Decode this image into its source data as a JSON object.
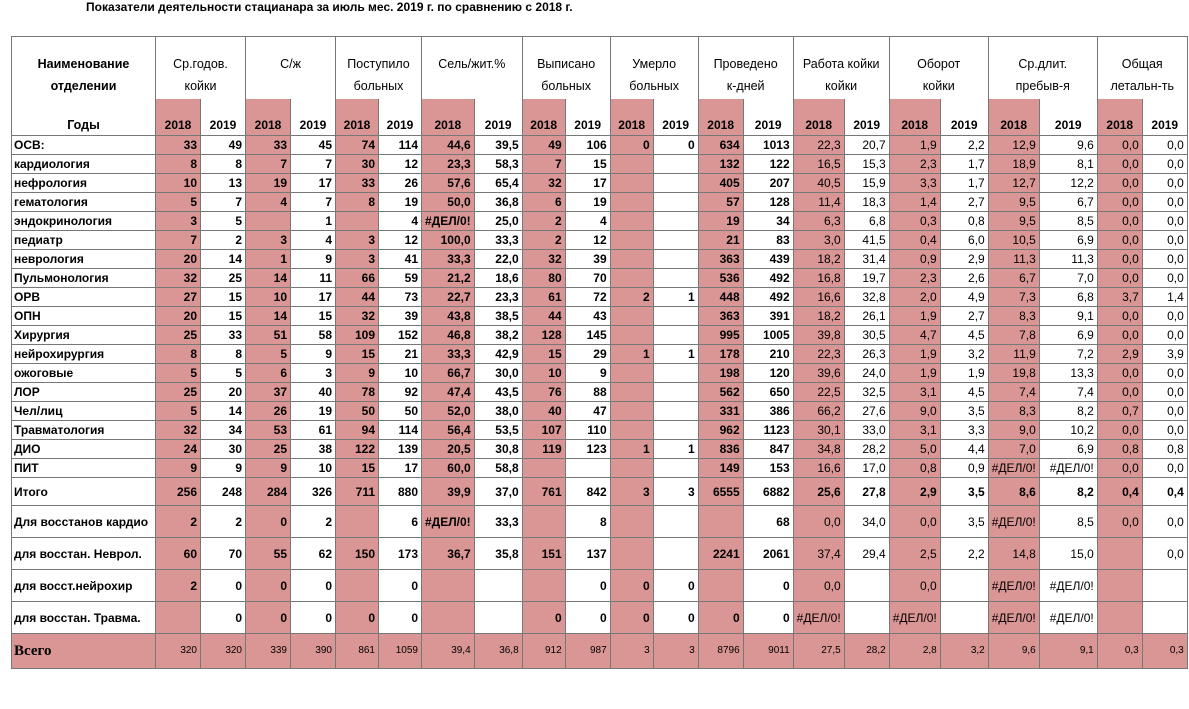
{
  "title": "Показатели деятельности стацианара за июль мес.  2019 г. по сравнению с 2018 г.",
  "colors": {
    "highlight": "#d99694",
    "grid": "#777777"
  },
  "header": {
    "name_top": "Наименование",
    "name_bottom": "отделении",
    "years_label": "Годы",
    "groups": [
      {
        "top": "Ср.годов.",
        "bottom": "койки"
      },
      {
        "top": "С/ж",
        "bottom": ""
      },
      {
        "top": "Поступило",
        "bottom": "больных"
      },
      {
        "top": "Сель/жит.%",
        "bottom": ""
      },
      {
        "top": "Выписано",
        "bottom": "больных"
      },
      {
        "top": "Умерло",
        "bottom": "больных"
      },
      {
        "top": "Проведено",
        "bottom": "к-дней"
      },
      {
        "top": "Работа койки",
        "bottom": "койки"
      },
      {
        "top": "Оборот",
        "bottom": "койки"
      },
      {
        "top": "Ср.длит.",
        "bottom": "пребыв-я"
      },
      {
        "top": "Общая",
        "bottom": "летальн-ть"
      }
    ],
    "year_a": "2018",
    "year_b": "2019"
  },
  "rows": [
    {
      "name": "ОСВ:",
      "v": [
        "33",
        "49",
        "33",
        "45",
        "74",
        "114",
        "44,6",
        "39,5",
        "49",
        "106",
        "0",
        "0",
        "634",
        "1013",
        "22,3",
        "20,7",
        "1,9",
        "2,2",
        "12,9",
        "9,6",
        "0,0",
        "0,0"
      ]
    },
    {
      "name": "кардиология",
      "v": [
        "8",
        "8",
        "7",
        "7",
        "30",
        "12",
        "23,3",
        "58,3",
        "7",
        "15",
        "",
        "",
        "132",
        "122",
        "16,5",
        "15,3",
        "2,3",
        "1,7",
        "18,9",
        "8,1",
        "0,0",
        "0,0"
      ]
    },
    {
      "name": "нефрология",
      "v": [
        "10",
        "13",
        "19",
        "17",
        "33",
        "26",
        "57,6",
        "65,4",
        "32",
        "17",
        "",
        "",
        "405",
        "207",
        "40,5",
        "15,9",
        "3,3",
        "1,7",
        "12,7",
        "12,2",
        "0,0",
        "0,0"
      ]
    },
    {
      "name": "гематология",
      "v": [
        "5",
        "7",
        "4",
        "7",
        "8",
        "19",
        "50,0",
        "36,8",
        "6",
        "19",
        "",
        "",
        "57",
        "128",
        "11,4",
        "18,3",
        "1,4",
        "2,7",
        "9,5",
        "6,7",
        "0,0",
        "0,0"
      ]
    },
    {
      "name": "эндокринология",
      "v": [
        "3",
        "5",
        "",
        "1",
        "",
        "4",
        "#ДЕЛ/0!",
        "25,0",
        "2",
        "4",
        "",
        "",
        "19",
        "34",
        "6,3",
        "6,8",
        "0,3",
        "0,8",
        "9,5",
        "8,5",
        "0,0",
        "0,0"
      ]
    },
    {
      "name": "педиатр",
      "v": [
        "7",
        "2",
        "3",
        "4",
        "3",
        "12",
        "100,0",
        "33,3",
        "2",
        "12",
        "",
        "",
        "21",
        "83",
        "3,0",
        "41,5",
        "0,4",
        "6,0",
        "10,5",
        "6,9",
        "0,0",
        "0,0"
      ]
    },
    {
      "name": "неврология",
      "v": [
        "20",
        "14",
        "1",
        "9",
        "3",
        "41",
        "33,3",
        "22,0",
        "32",
        "39",
        "",
        "",
        "363",
        "439",
        "18,2",
        "31,4",
        "0,9",
        "2,9",
        "11,3",
        "11,3",
        "0,0",
        "0,0"
      ]
    },
    {
      "name": "Пульмонология",
      "v": [
        "32",
        "25",
        "14",
        "11",
        "66",
        "59",
        "21,2",
        "18,6",
        "80",
        "70",
        "",
        "",
        "536",
        "492",
        "16,8",
        "19,7",
        "2,3",
        "2,6",
        "6,7",
        "7,0",
        "0,0",
        "0,0"
      ]
    },
    {
      "name": "ОРВ",
      "v": [
        "27",
        "15",
        "10",
        "17",
        "44",
        "73",
        "22,7",
        "23,3",
        "61",
        "72",
        "2",
        "1",
        "448",
        "492",
        "16,6",
        "32,8",
        "2,0",
        "4,9",
        "7,3",
        "6,8",
        "3,7",
        "1,4"
      ]
    },
    {
      "name": "ОПН",
      "v": [
        "20",
        "15",
        "14",
        "15",
        "32",
        "39",
        "43,8",
        "38,5",
        "44",
        "43",
        "",
        "",
        "363",
        "391",
        "18,2",
        "26,1",
        "1,9",
        "2,7",
        "8,3",
        "9,1",
        "0,0",
        "0,0"
      ]
    },
    {
      "name": "Хирургия",
      "v": [
        "25",
        "33",
        "51",
        "58",
        "109",
        "152",
        "46,8",
        "38,2",
        "128",
        "145",
        "",
        "",
        "995",
        "1005",
        "39,8",
        "30,5",
        "4,7",
        "4,5",
        "7,8",
        "6,9",
        "0,0",
        "0,0"
      ]
    },
    {
      "name": "нейрохирургия",
      "v": [
        "8",
        "8",
        "5",
        "9",
        "15",
        "21",
        "33,3",
        "42,9",
        "15",
        "29",
        "1",
        "1",
        "178",
        "210",
        "22,3",
        "26,3",
        "1,9",
        "3,2",
        "11,9",
        "7,2",
        "2,9",
        "3,9"
      ]
    },
    {
      "name": "ожоговые",
      "v": [
        "5",
        "5",
        "6",
        "3",
        "9",
        "10",
        "66,7",
        "30,0",
        "10",
        "9",
        "",
        "",
        "198",
        "120",
        "39,6",
        "24,0",
        "1,9",
        "1,9",
        "19,8",
        "13,3",
        "0,0",
        "0,0"
      ]
    },
    {
      "name": "ЛОР",
      "v": [
        "25",
        "20",
        "37",
        "40",
        "78",
        "92",
        "47,4",
        "43,5",
        "76",
        "88",
        "",
        "",
        "562",
        "650",
        "22,5",
        "32,5",
        "3,1",
        "4,5",
        "7,4",
        "7,4",
        "0,0",
        "0,0"
      ]
    },
    {
      "name": "Чел/лиц",
      "v": [
        "5",
        "14",
        "26",
        "19",
        "50",
        "50",
        "52,0",
        "38,0",
        "40",
        "47",
        "",
        "",
        "331",
        "386",
        "66,2",
        "27,6",
        "9,0",
        "3,5",
        "8,3",
        "8,2",
        "0,7",
        "0,0"
      ]
    },
    {
      "name": "Травматология",
      "v": [
        "32",
        "34",
        "53",
        "61",
        "94",
        "114",
        "56,4",
        "53,5",
        "107",
        "110",
        "",
        "",
        "962",
        "1123",
        "30,1",
        "33,0",
        "3,1",
        "3,3",
        "9,0",
        "10,2",
        "0,0",
        "0,0"
      ]
    },
    {
      "name": "ДИО",
      "v": [
        "24",
        "30",
        "25",
        "38",
        "122",
        "139",
        "20,5",
        "30,8",
        "119",
        "123",
        "1",
        "1",
        "836",
        "847",
        "34,8",
        "28,2",
        "5,0",
        "4,4",
        "7,0",
        "6,9",
        "0,8",
        "0,8"
      ]
    },
    {
      "name": "ПИТ",
      "v": [
        "9",
        "9",
        "9",
        "10",
        "15",
        "17",
        "60,0",
        "58,8",
        "",
        "",
        "",
        "",
        "149",
        "153",
        "16,6",
        "17,0",
        "0,8",
        "0,9",
        "#ДЕЛ/0!",
        "#ДЕЛ/0!",
        "0,0",
        "0,0"
      ]
    },
    {
      "name": "Итого",
      "v": [
        "256",
        "248",
        "284",
        "326",
        "711",
        "880",
        "39,9",
        "37,0",
        "761",
        "842",
        "3",
        "3",
        "6555",
        "6882",
        "25,6",
        "27,8",
        "2,9",
        "3,5",
        "8,6",
        "8,2",
        "0,4",
        "0,4"
      ]
    },
    {
      "name": "Для восстанов кардио",
      "v": [
        "2",
        "2",
        "0",
        "2",
        "",
        "6",
        "#ДЕЛ/0!",
        "33,3",
        "",
        "8",
        "",
        "",
        "",
        "68",
        "0,0",
        "34,0",
        "0,0",
        "3,5",
        "#ДЕЛ/0!",
        "8,5",
        "0,0",
        "0,0"
      ]
    },
    {
      "name": "для восстан. Неврол.",
      "v": [
        "60",
        "70",
        "55",
        "62",
        "150",
        "173",
        "36,7",
        "35,8",
        "151",
        "137",
        "",
        "",
        "2241",
        "2061",
        "37,4",
        "29,4",
        "2,5",
        "2,2",
        "14,8",
        "15,0",
        "",
        "0,0"
      ]
    },
    {
      "name": "для восст.нейрохир",
      "v": [
        "2",
        "0",
        "0",
        "0",
        "",
        "0",
        "",
        "",
        "",
        "0",
        "0",
        "0",
        "",
        "0",
        "0,0",
        "",
        "0,0",
        "",
        "#ДЕЛ/0!",
        "#ДЕЛ/0!",
        "",
        ""
      ]
    },
    {
      "name": "для восстан. Травма.",
      "v": [
        "",
        "0",
        "0",
        "0",
        "0",
        "0",
        "",
        "",
        "0",
        "0",
        "0",
        "0",
        "0",
        "0",
        "#ДЕЛ/0!",
        "",
        "#ДЕЛ/0!",
        "",
        "#ДЕЛ/0!",
        "#ДЕЛ/0!",
        "",
        ""
      ]
    },
    {
      "name": "Всего",
      "v": [
        "320",
        "320",
        "339",
        "390",
        "861",
        "1059",
        "39,4",
        "36,8",
        "912",
        "987",
        "3",
        "3",
        "8796",
        "9011",
        "27,5",
        "28,2",
        "2,8",
        "3,2",
        "9,6",
        "9,1",
        "0,3",
        "0,3"
      ]
    }
  ]
}
